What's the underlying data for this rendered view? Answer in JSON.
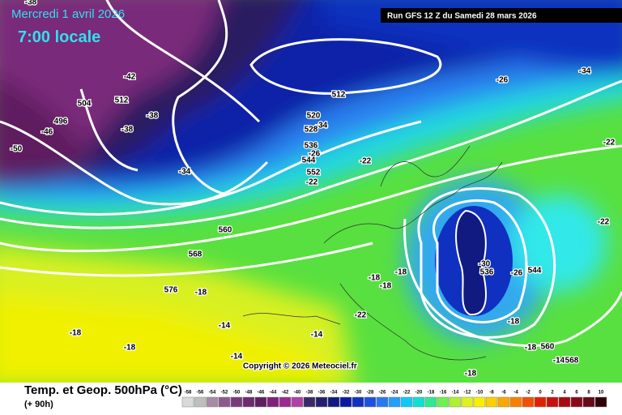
{
  "header": {
    "date": "Mercredi 1 avril 2026",
    "time": "7:00 locale",
    "run": "Run GFS 12 Z du Samedi 28 mars 2026"
  },
  "map": {
    "copyright": "Copyright © 2026 Meteociel.fr",
    "contour_labels": [
      "-38",
      "-42",
      "504",
      "512",
      "-46",
      "496",
      "-50",
      "-38",
      "-38",
      "-34",
      "512",
      "520",
      "-34",
      "528",
      "536",
      "-26",
      "544",
      "-22",
      "552",
      "-22",
      "560",
      "568",
      "576",
      "-18",
      "-18",
      "-14",
      "-18",
      "-14",
      "-14",
      "-22",
      "-18",
      "-18",
      "-18",
      "-30",
      "536",
      "-26",
      "544",
      "-26",
      "-34",
      "-22",
      "-22",
      "-18",
      "-18",
      "560",
      "-14",
      "568",
      "-18"
    ]
  },
  "footer": {
    "title": "Temp. et Geop. 500hPa (°C)",
    "lead": "(+ 90h)",
    "scale": {
      "values": [
        -58,
        -56,
        -54,
        -52,
        -50,
        -48,
        -46,
        -44,
        -42,
        -40,
        -38,
        -36,
        -34,
        -32,
        -30,
        -28,
        -26,
        -24,
        -22,
        -20,
        -18,
        -16,
        -14,
        -12,
        -10,
        -8,
        -6,
        -4,
        -2,
        0,
        2,
        4,
        6,
        8,
        10
      ],
      "colors": [
        "#d9d9d9",
        "#bfbfbf",
        "#a68aa6",
        "#8c5a8c",
        "#7a3a7a",
        "#6e2a6e",
        "#5e1f5e",
        "#80207a",
        "#9a2a90",
        "#b040a8",
        "#3a2a6a",
        "#22206e",
        "#101a80",
        "#0a1aa0",
        "#1030c0",
        "#1e50e0",
        "#2878f0",
        "#20a0f8",
        "#10c8f8",
        "#10e0d0",
        "#30e890",
        "#70f050",
        "#b0f030",
        "#e0f020",
        "#f8f000",
        "#f8d000",
        "#f8a800",
        "#f88000",
        "#f05000",
        "#e02000",
        "#c81010",
        "#a80810",
        "#880818",
        "#680818",
        "#300008"
      ]
    }
  }
}
